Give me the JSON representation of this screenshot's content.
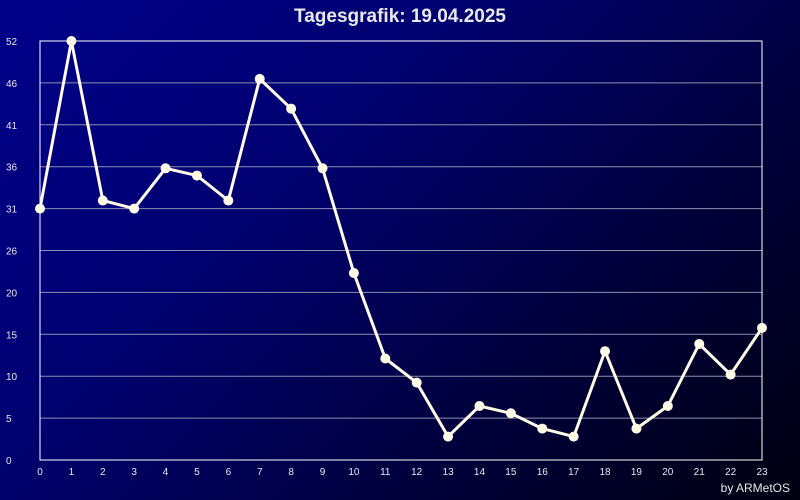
{
  "title": "Tagesgrafik: 19.04.2025",
  "credit": "by ARMetOS",
  "colors": {
    "line": "#fffbe6",
    "grid": "#8a8fb0",
    "axis": "#ffffff",
    "text": "#e8e8e8"
  },
  "chart_data": {
    "type": "line",
    "title": "Tagesgrafik: 19.04.2025",
    "xlabel": "",
    "ylabel": "",
    "x": [
      0,
      1,
      2,
      3,
      4,
      5,
      6,
      7,
      8,
      9,
      10,
      11,
      12,
      13,
      14,
      15,
      16,
      17,
      18,
      19,
      20,
      21,
      22,
      23
    ],
    "values": [
      31.2,
      52,
      32.2,
      31.2,
      36.2,
      35.3,
      32.2,
      47.3,
      43.6,
      36.2,
      23.2,
      12.6,
      9.6,
      2.9,
      6.7,
      5.8,
      3.9,
      2.9,
      13.5,
      3.9,
      6.7,
      14.4,
      10.6,
      16.4
    ],
    "x_ticks": [
      "0",
      "1",
      "2",
      "3",
      "4",
      "5",
      "6",
      "7",
      "8",
      "9",
      "10",
      "11",
      "12",
      "13",
      "14",
      "15",
      "16",
      "17",
      "18",
      "19",
      "20",
      "21",
      "22",
      "23"
    ],
    "y_ticks": [
      "0",
      "5",
      "10",
      "15",
      "20",
      "26",
      "31",
      "36",
      "41",
      "46",
      "52"
    ],
    "ylim": [
      0,
      52
    ],
    "xlim": [
      0,
      23
    ],
    "grid": true,
    "legend": "none"
  }
}
